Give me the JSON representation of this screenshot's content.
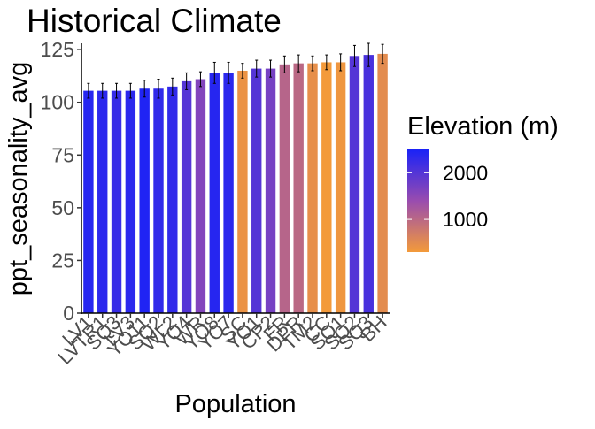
{
  "chart_data": {
    "type": "bar",
    "title": "Historical Climate",
    "xlabel": "Population",
    "ylabel": "ppt_seasonality_avg",
    "ylim": [
      0,
      128
    ],
    "yticks": [
      0,
      25,
      50,
      75,
      100,
      125
    ],
    "grid": false,
    "error_bars": true,
    "categories": [
      "LV1",
      "LVTR1",
      "SQ3",
      "LV3",
      "YO11",
      "SQ2",
      "WL2",
      "YO4",
      "WR",
      "YO8",
      "YO7",
      "SC",
      "YO1",
      "CP2",
      "FR",
      "DPR",
      "TM2",
      "CC",
      "SQ1",
      "SQ2b",
      "SQ3b",
      "BH"
    ],
    "tick_labels": [
      "LV1",
      "LVTR1",
      "SQ3",
      "LV3",
      "YO11",
      "SQ2",
      "WL2",
      "YO4",
      "WR",
      "YO8",
      "YO7",
      "SC",
      "YO1",
      "CP2",
      "FR",
      "DPR",
      "TM2",
      "CC",
      "SQ1",
      "SQ2",
      "SQ3",
      "BH"
    ],
    "values": [
      105.5,
      105.5,
      105.5,
      105.5,
      106.5,
      106.5,
      107.5,
      110.0,
      111.0,
      114.0,
      114.0,
      115.0,
      116.0,
      116.0,
      118.0,
      118.5,
      118.5,
      119.0,
      119.0,
      122.0,
      122.5,
      123.0
    ],
    "errors": [
      3.5,
      3.5,
      3.5,
      3.5,
      4.0,
      4.5,
      4.0,
      4.0,
      3.5,
      5.0,
      5.0,
      3.5,
      4.0,
      4.0,
      4.0,
      4.0,
      3.5,
      3.5,
      4.0,
      5.0,
      5.5,
      4.5
    ],
    "elevation": [
      2400,
      2350,
      2250,
      2350,
      2450,
      2300,
      2300,
      2000,
      1600,
      2400,
      2350,
      400,
      2000,
      1700,
      1050,
      1000,
      450,
      300,
      350,
      2000,
      2100,
      500
    ],
    "legend": {
      "title": "Elevation (m)",
      "position": "right",
      "breaks": [
        2000,
        1000
      ],
      "break_labels": [
        "2000",
        "1000"
      ],
      "range": [
        300,
        2500
      ],
      "color_low": "#f39a3a",
      "color_high": "#1a22f7"
    }
  }
}
